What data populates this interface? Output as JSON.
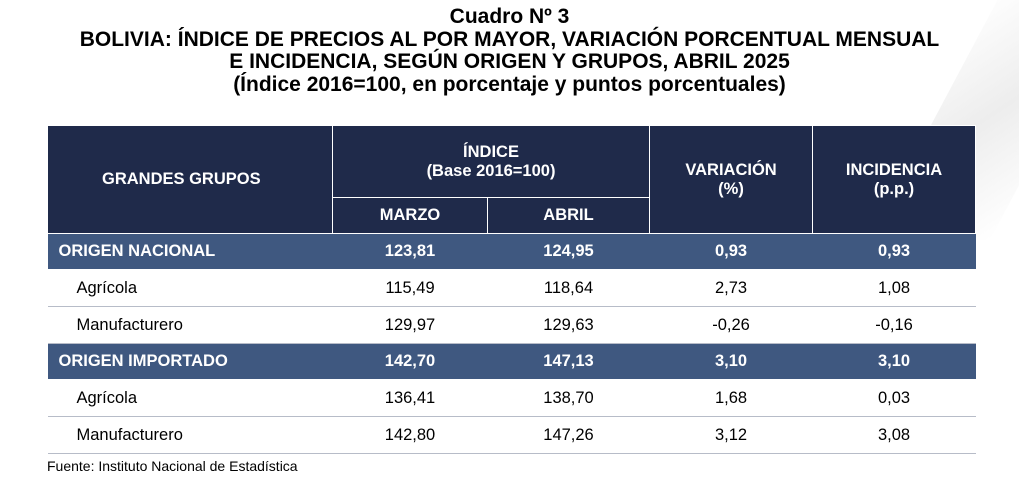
{
  "title": {
    "line1": "Cuadro Nº 3",
    "line2": "BOLIVIA: ÍNDICE DE PRECIOS AL POR MAYOR, VARIACIÓN PORCENTUAL MENSUAL",
    "line3": "E INCIDENCIA, SEGÚN ORIGEN Y GRUPOS, ABRIL 2025",
    "line4": "(Índice 2016=100, en porcentaje y puntos porcentuales)"
  },
  "header": {
    "grupos": "GRANDES GRUPOS",
    "indice_title": "ÍNDICE",
    "indice_base": "(Base 2016=100)",
    "variacion_title": "VARIACIÓN",
    "variacion_unit": "(%)",
    "incidencia_title": "INCIDENCIA",
    "incidencia_unit": "(p.p.)",
    "marzo": "MARZO",
    "abril": "ABRIL"
  },
  "rows": [
    {
      "name": "ORIGEN NACIONAL",
      "marzo": "123,81",
      "abril": "124,95",
      "variacion": "0,93",
      "incidencia": "0,93"
    },
    {
      "name": "Agrícola",
      "marzo": "115,49",
      "abril": "118,64",
      "variacion": "2,73",
      "incidencia": "1,08"
    },
    {
      "name": "Manufacturero",
      "marzo": "129,97",
      "abril": "129,63",
      "variacion": "-0,26",
      "incidencia": "-0,16"
    },
    {
      "name": "ORIGEN IMPORTADO",
      "marzo": "142,70",
      "abril": "147,13",
      "variacion": "3,10",
      "incidencia": "3,10"
    },
    {
      "name": "Agrícola",
      "marzo": "136,41",
      "abril": "138,70",
      "variacion": "1,68",
      "incidencia": "0,03"
    },
    {
      "name": "Manufacturero",
      "marzo": "142,80",
      "abril": "147,26",
      "variacion": "3,12",
      "incidencia": "3,08"
    }
  ],
  "source": "Fuente: Instituto Nacional de Estadística",
  "colors": {
    "header_bg": "#1f2a4a",
    "group_row_bg": "#3f5880"
  }
}
